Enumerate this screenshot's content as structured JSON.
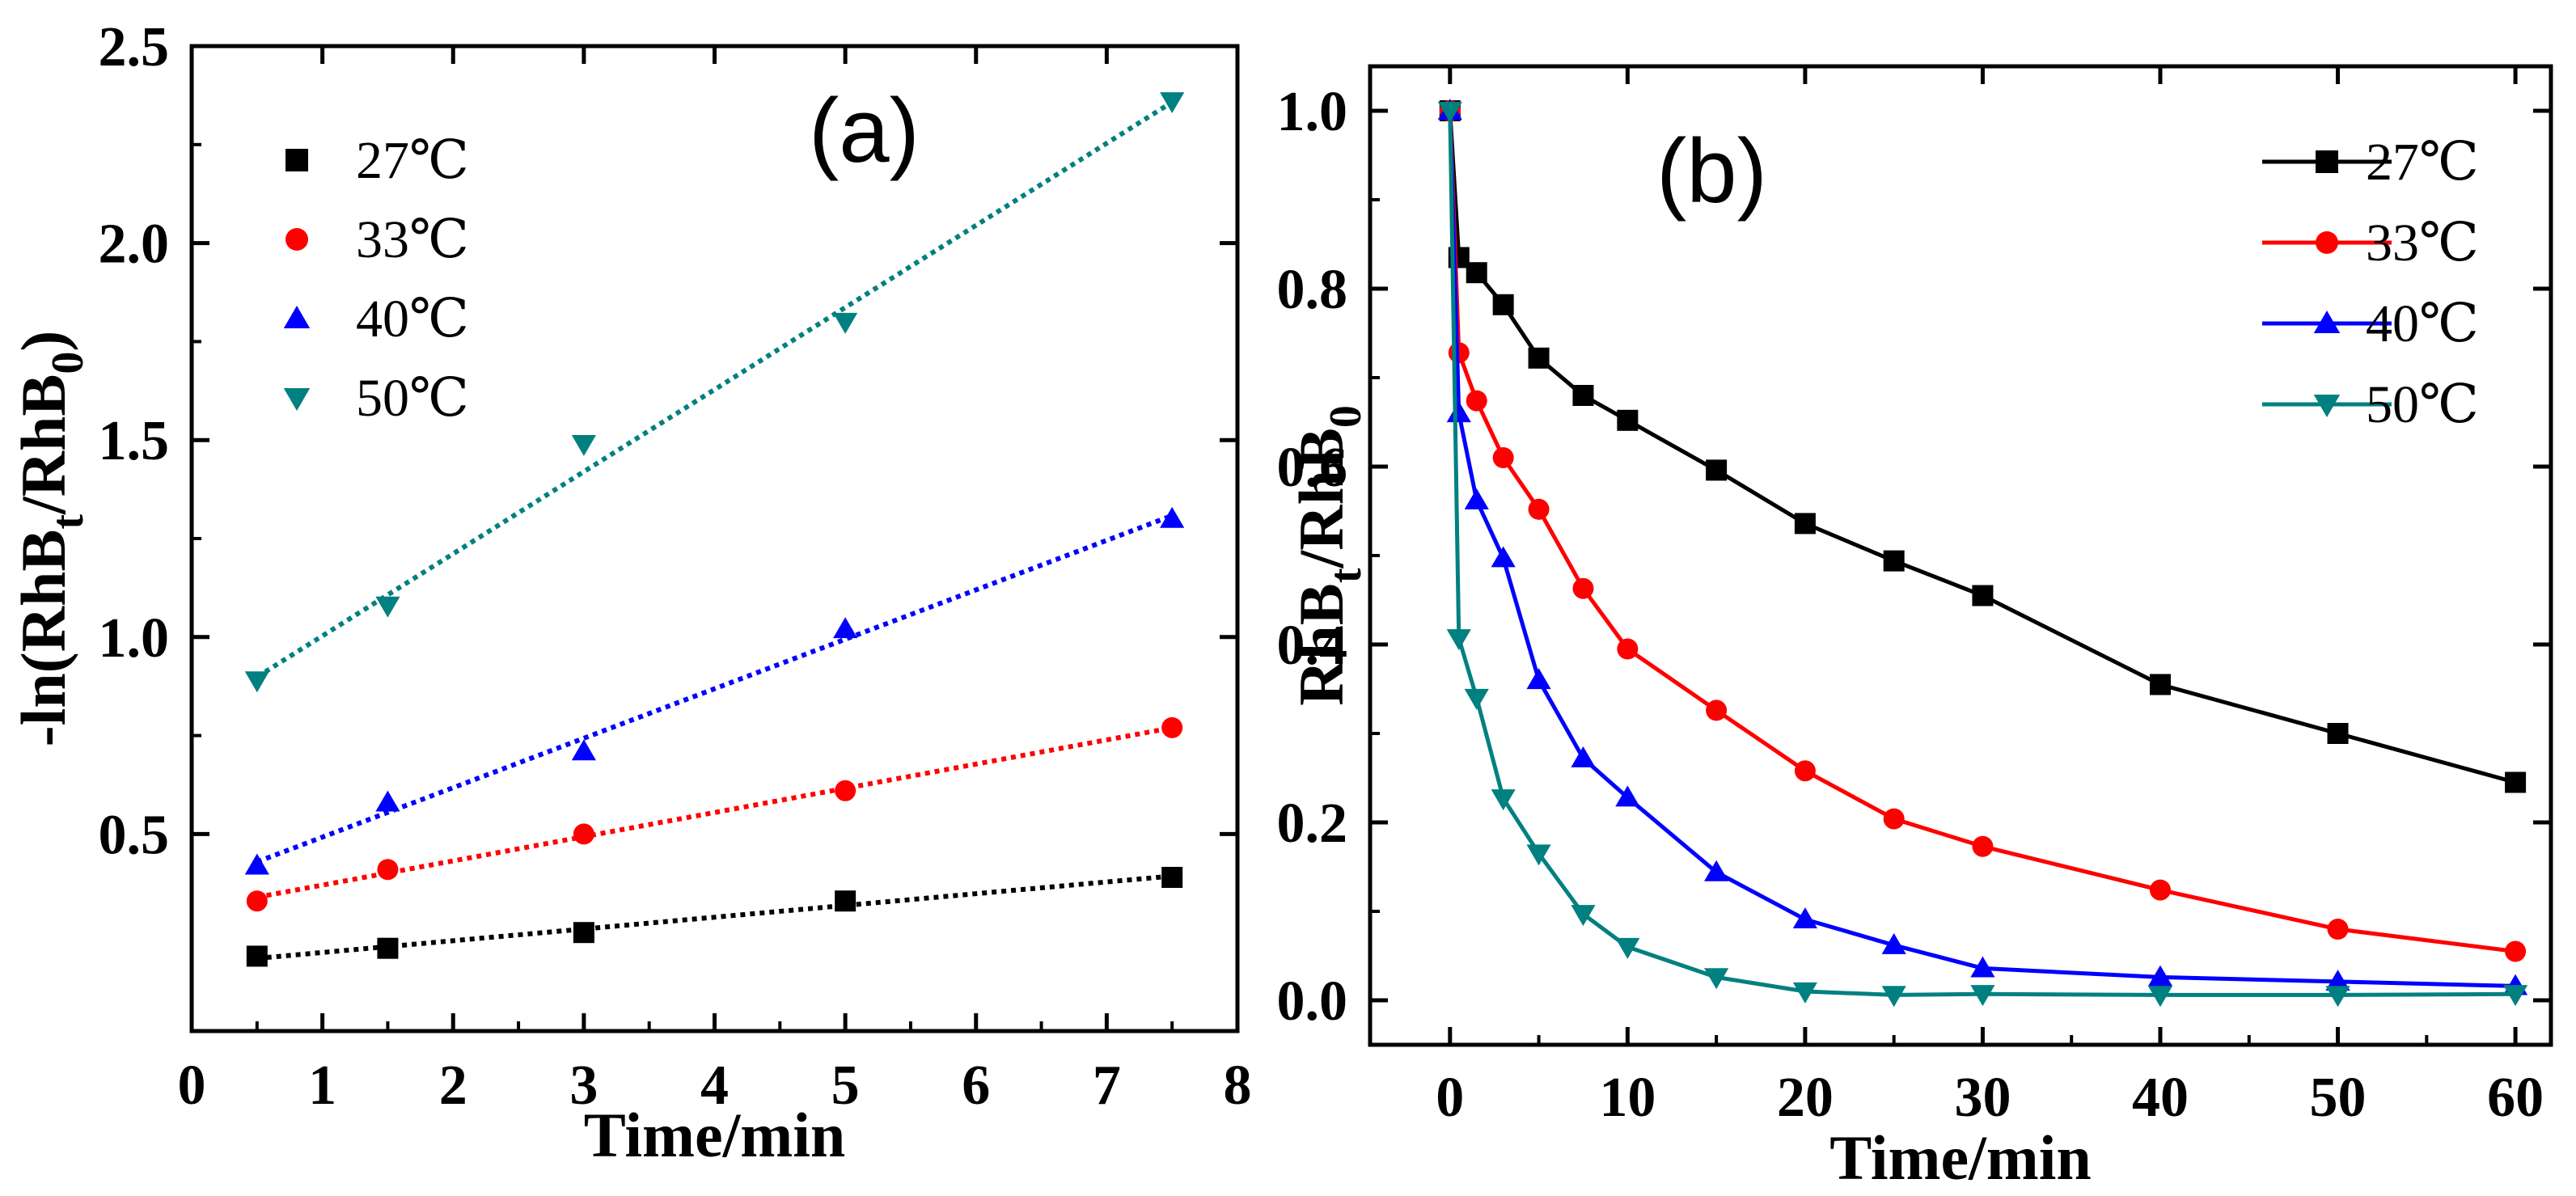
{
  "chart_data": [
    {
      "type": "scatter",
      "panel_label": "(a)",
      "xlabel": "Time/min",
      "ylabel": "-ln(RhB_t/RhB_0)",
      "ylabel_parts": {
        "pre": "-ln(RhB",
        "sub1": "t",
        "mid": "/RhB",
        "sub2": "0",
        "post": ")"
      },
      "xlim": [
        0,
        8
      ],
      "ylim": [
        0,
        2.5
      ],
      "xticks": [
        0,
        1,
        2,
        3,
        4,
        5,
        6,
        7,
        8
      ],
      "xtick_labels": [
        "0",
        "1",
        "2",
        "3",
        "4",
        "5",
        "6",
        "7",
        "8"
      ],
      "yticks": [
        0.5,
        1.0,
        1.5,
        2.0,
        2.5
      ],
      "ytick_labels": [
        "0.5",
        "1.0",
        "1.5",
        "2.0",
        "2.5"
      ],
      "legend_position": "top-left",
      "fit_lines": "dotted linear fit per series",
      "series": [
        {
          "name": "27℃",
          "color": "#000000",
          "marker": "square",
          "x": [
            0.5,
            1.5,
            3,
            5,
            7.5
          ],
          "y": [
            0.19,
            0.21,
            0.25,
            0.33,
            0.39
          ]
        },
        {
          "name": "33℃",
          "color": "#ff0000",
          "marker": "circle",
          "x": [
            0.5,
            1.5,
            3,
            5,
            7.5
          ],
          "y": [
            0.33,
            0.41,
            0.5,
            0.61,
            0.77
          ]
        },
        {
          "name": "40℃",
          "color": "#0000ff",
          "marker": "triangle-up",
          "x": [
            0.5,
            1.5,
            3,
            5,
            7.5
          ],
          "y": [
            0.42,
            0.58,
            0.71,
            1.02,
            1.3
          ]
        },
        {
          "name": "50℃",
          "color": "#008080",
          "marker": "triangle-down",
          "x": [
            0.5,
            1.5,
            3,
            5,
            7.5
          ],
          "y": [
            0.89,
            1.08,
            1.49,
            1.8,
            2.36
          ]
        }
      ]
    },
    {
      "type": "line",
      "panel_label": "(b)",
      "xlabel": "Time/min",
      "ylabel": "RhB_t/RhB_0",
      "ylabel_parts": {
        "pre": "RhB",
        "sub1": "t",
        "mid": "/RhB",
        "sub2": "0",
        "post": ""
      },
      "xlim": [
        -4.5,
        62
      ],
      "ylim": [
        -0.05,
        1.05
      ],
      "xticks": [
        0,
        10,
        20,
        30,
        40,
        50,
        60
      ],
      "xtick_labels": [
        "0",
        "10",
        "20",
        "30",
        "40",
        "50",
        "60"
      ],
      "yticks": [
        0.0,
        0.2,
        0.4,
        0.6,
        0.8,
        1.0
      ],
      "ytick_labels": [
        "0.0",
        "0.2",
        "0.4",
        "0.6",
        "0.8",
        "1.0"
      ],
      "legend_position": "top-right",
      "series": [
        {
          "name": "27℃",
          "color": "#000000",
          "marker": "square",
          "x": [
            0,
            0.5,
            1.5,
            3,
            5,
            7.5,
            10,
            15,
            20,
            25,
            30,
            40,
            50,
            60
          ],
          "y": [
            1.0,
            0.835,
            0.818,
            0.782,
            0.722,
            0.68,
            0.652,
            0.596,
            0.536,
            0.494,
            0.455,
            0.355,
            0.3,
            0.245
          ]
        },
        {
          "name": "33℃",
          "color": "#ff0000",
          "marker": "circle",
          "x": [
            0,
            0.5,
            1.5,
            3,
            5,
            7.5,
            10,
            15,
            20,
            25,
            30,
            40,
            50,
            60
          ],
          "y": [
            1.0,
            0.728,
            0.674,
            0.61,
            0.552,
            0.463,
            0.395,
            0.326,
            0.258,
            0.204,
            0.173,
            0.124,
            0.08,
            0.055
          ]
        },
        {
          "name": "40℃",
          "color": "#0000ff",
          "marker": "triangle-up",
          "x": [
            0,
            0.5,
            1.5,
            3,
            5,
            7.5,
            10,
            15,
            20,
            25,
            30,
            40,
            50,
            60
          ],
          "y": [
            1.0,
            0.66,
            0.562,
            0.497,
            0.36,
            0.272,
            0.228,
            0.144,
            0.091,
            0.062,
            0.036,
            0.026,
            0.021,
            0.016
          ]
        },
        {
          "name": "50℃",
          "color": "#008080",
          "marker": "triangle-down",
          "x": [
            0,
            0.5,
            1.5,
            3,
            5,
            7.5,
            10,
            15,
            20,
            25,
            30,
            40,
            50,
            60
          ],
          "y": [
            1.0,
            0.407,
            0.34,
            0.227,
            0.165,
            0.097,
            0.06,
            0.026,
            0.01,
            0.006,
            0.007,
            0.006,
            0.006,
            0.007
          ]
        }
      ]
    }
  ]
}
